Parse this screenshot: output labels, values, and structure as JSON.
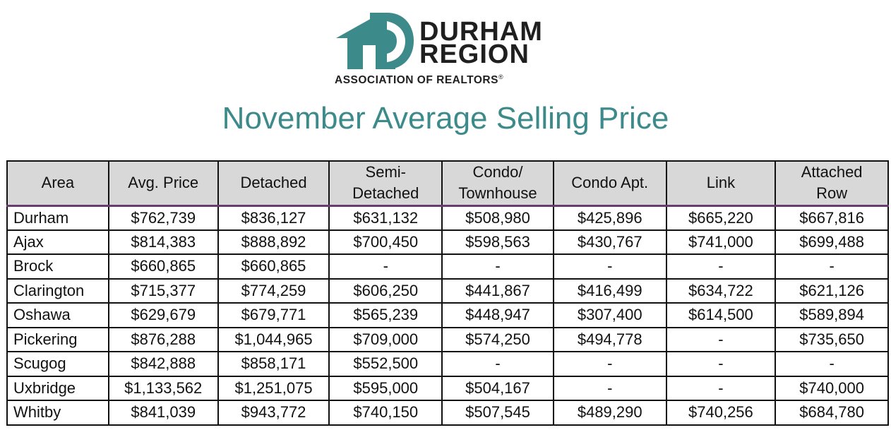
{
  "logo": {
    "line1": "DURHAM",
    "line2": "REGION",
    "tagline": "ASSOCIATION OF REALTORS",
    "reg_mark": "®",
    "brand_color": "#3d8a8a"
  },
  "title": "November Average Selling Price",
  "table": {
    "headers": [
      [
        "Area"
      ],
      [
        "Avg. Price"
      ],
      [
        "Detached"
      ],
      [
        "Semi-",
        "Detached"
      ],
      [
        "Condo/",
        "Townhouse"
      ],
      [
        "Condo Apt."
      ],
      [
        "Link"
      ],
      [
        "Attached",
        "Row"
      ]
    ],
    "rows": [
      [
        "Durham",
        "$762,739",
        "$836,127",
        "$631,132",
        "$508,980",
        "$425,896",
        "$665,220",
        "$667,816"
      ],
      [
        "Ajax",
        "$814,383",
        "$888,892",
        "$700,450",
        "$598,563",
        "$430,767",
        "$741,000",
        "$699,488"
      ],
      [
        "Brock",
        "$660,865",
        "$660,865",
        "-",
        "-",
        "-",
        "-",
        "-"
      ],
      [
        "Clarington",
        "$715,377",
        "$774,259",
        "$606,250",
        "$441,867",
        "$416,499",
        "$634,722",
        "$621,126"
      ],
      [
        "Oshawa",
        "$629,679",
        "$679,771",
        "$565,239",
        "$448,947",
        "$307,400",
        "$614,500",
        "$589,894"
      ],
      [
        "Pickering",
        "$876,288",
        "$1,044,965",
        "$709,000",
        "$574,250",
        "$494,778",
        "-",
        "$735,650"
      ],
      [
        "Scugog",
        "$842,888",
        "$858,171",
        "$552,500",
        "-",
        "-",
        "-",
        "-"
      ],
      [
        "Uxbridge",
        "$1,133,562",
        "$1,251,075",
        "$595,000",
        "$504,167",
        "-",
        "-",
        "$740,000"
      ],
      [
        "Whitby",
        "$841,039",
        "$943,772",
        "$740,150",
        "$507,545",
        "$489,290",
        "$740,256",
        "$684,780"
      ]
    ]
  }
}
